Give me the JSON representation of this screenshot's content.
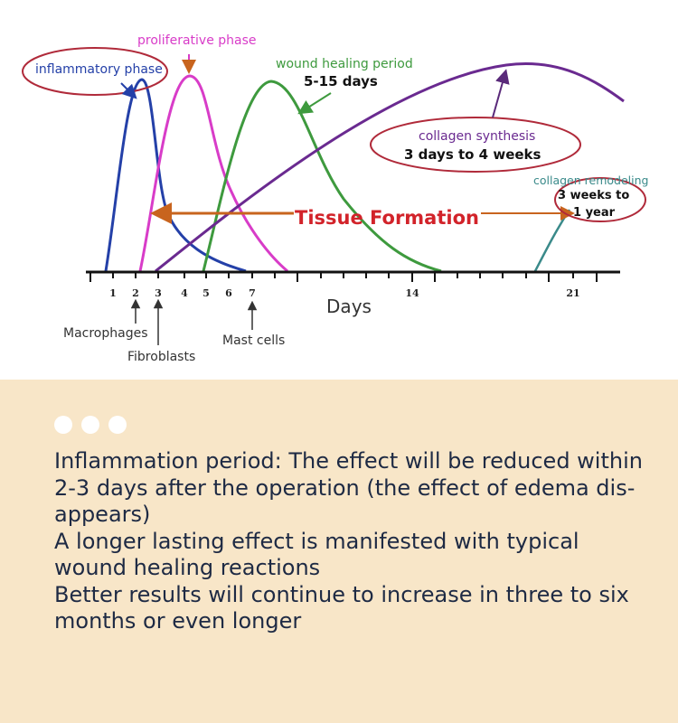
{
  "diagram": {
    "labels": {
      "inflammatory_phase": "inflammatory phase",
      "proliferative_phase": "proliferative phase",
      "wound_healing_period": "wound healing period",
      "wound_healing_days": "5-15 days",
      "collagen_synthesis": "collagen synthesis",
      "collagen_synthesis_range": "3 days to 4 weeks",
      "collagen_remodeling": "collagen remodeling",
      "collagen_remodeling_range_1": "3 weeks to",
      "collagen_remodeling_range_2": "1 year",
      "tissue_formation": "Tissue Formation",
      "days_axis": "Days",
      "macrophages": "Macrophages",
      "fibroblasts": "Fibroblasts",
      "mast_cells": "Mast cells"
    },
    "ticks": [
      "1",
      "2",
      "3",
      "4",
      "5",
      "6",
      "7",
      "14",
      "21"
    ],
    "colors": {
      "inflammatory": "#2440a8",
      "proliferative": "#d83cc8",
      "wound_healing": "#3e9a3e",
      "collagen": "#6a2a90",
      "remodeling": "#3a8a8a",
      "tissue_formation": "#d2232a",
      "arrow_orange": "#c8641e",
      "ellipse": "#b02a3a"
    }
  },
  "text_panel": {
    "lines": [
      "Inflammation period: The effect will be reduced within 2-3 days after the operation (the effect of edema dis-appears)",
      "A longer lasting effect is manifested with typical wound healing reactions",
      "Better results will continue to increase in three to six months or even longer"
    ]
  }
}
